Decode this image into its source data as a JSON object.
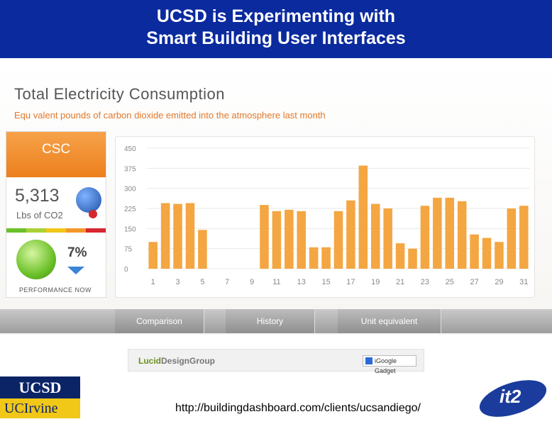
{
  "banner": {
    "line1": "UCSD is Experimenting with",
    "line2": "Smart Building User Interfaces"
  },
  "dashboard": {
    "title": "Total Electricity Consumption",
    "subtitle": "Equ valent pounds of carbon dioxide emitted into the atmosphere last month",
    "building": "CSC",
    "value": "5,313",
    "unit": "Lbs of CO2",
    "performance_pct": "7%",
    "performance_label": "PERFORMANCE NOW",
    "meter_colors": [
      "#6cc12a",
      "#a9d136",
      "#f1c718",
      "#f3962a",
      "#d6262e"
    ],
    "bar_color": "#f4a642",
    "grid_color": "#e8e8e8"
  },
  "tabs": [
    "Comparison",
    "History",
    "Unit equivalent"
  ],
  "gadget": {
    "brand_part1": "Lucid",
    "brand_part2": "DesignGroup",
    "badge": "iGoogle Gadget"
  },
  "footer": {
    "ucsd_logo": "UCSD",
    "uci_logo": "UCIrvine",
    "url": "http://buildingdashboard.com/clients/ucsandiego/",
    "it2_logo": "it2"
  },
  "chart_data": {
    "type": "bar",
    "title": "",
    "xlabel": "",
    "ylabel": "",
    "ylim": [
      0,
      450
    ],
    "yticks": [
      0,
      75,
      150,
      225,
      300,
      375,
      450
    ],
    "x": [
      1,
      2,
      3,
      4,
      5,
      6,
      7,
      8,
      9,
      10,
      11,
      12,
      13,
      14,
      15,
      16,
      17,
      18,
      19,
      20,
      21,
      22,
      23,
      24,
      25,
      26,
      27,
      28,
      29,
      30,
      31
    ],
    "xtick_labels": [
      "1",
      "3",
      "5",
      "7",
      "9",
      "11",
      "13",
      "15",
      "17",
      "19",
      "21",
      "23",
      "25",
      "27",
      "29",
      "31"
    ],
    "values": [
      100,
      245,
      242,
      245,
      145,
      0,
      0,
      0,
      0,
      238,
      215,
      220,
      215,
      80,
      80,
      215,
      255,
      385,
      242,
      225,
      95,
      75,
      235,
      265,
      265,
      252,
      128,
      115,
      100,
      225,
      235
    ]
  }
}
